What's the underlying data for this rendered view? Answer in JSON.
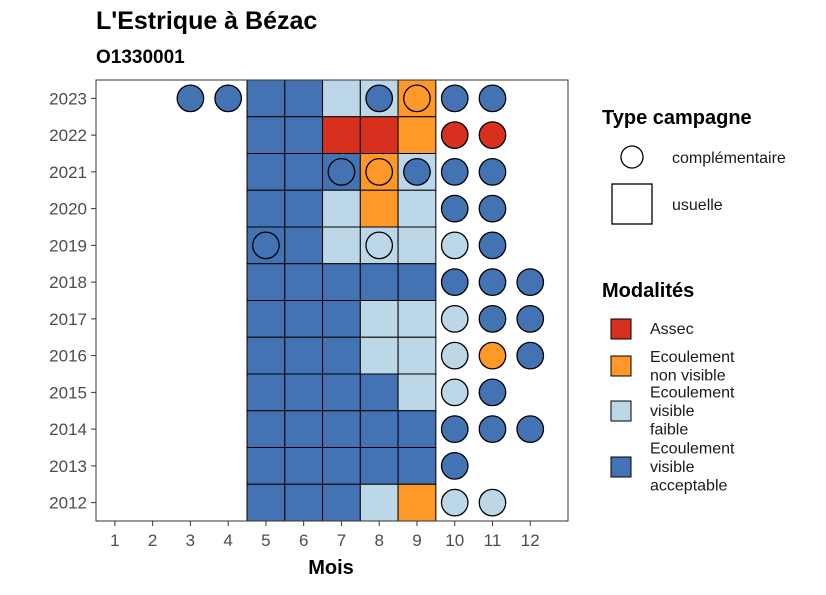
{
  "chart_data": {
    "type": "heatmap",
    "title": "L'Estrique à Bézac",
    "subtitle": "O1330001",
    "xlabel": "Mois",
    "ylabel": "",
    "x_ticks": [
      "1",
      "2",
      "3",
      "4",
      "5",
      "6",
      "7",
      "8",
      "9",
      "10",
      "11",
      "12"
    ],
    "y_ticks": [
      "2012",
      "2013",
      "2014",
      "2015",
      "2016",
      "2017",
      "2018",
      "2019",
      "2020",
      "2021",
      "2022",
      "2023"
    ],
    "grid": false,
    "colors": {
      "assec": "#d7301f",
      "nonvisible": "#fe9929",
      "faible": "#bcd7e8",
      "acceptable": "#4473b4"
    },
    "legend_shape": {
      "title": "Type campagne",
      "entries": [
        {
          "shape": "circle",
          "label": "complémentaire"
        },
        {
          "shape": "square",
          "label": "usuelle"
        }
      ]
    },
    "legend_fill": {
      "title": "Modalités",
      "entries": [
        {
          "key": "assec",
          "lines": [
            "Assec"
          ]
        },
        {
          "key": "nonvisible",
          "lines": [
            "Ecoulement",
            "non visible"
          ]
        },
        {
          "key": "faible",
          "lines": [
            "Ecoulement",
            "visible",
            "faible"
          ]
        },
        {
          "key": "acceptable",
          "lines": [
            "Ecoulement",
            "visible",
            "acceptable"
          ]
        }
      ]
    },
    "observations": [
      {
        "year": "2023",
        "month": 3,
        "type": "circle",
        "value": "acceptable"
      },
      {
        "year": "2023",
        "month": 4,
        "type": "circle",
        "value": "acceptable"
      },
      {
        "year": "2023",
        "month": 5,
        "type": "square",
        "value": "acceptable"
      },
      {
        "year": "2023",
        "month": 6,
        "type": "square",
        "value": "acceptable"
      },
      {
        "year": "2023",
        "month": 7,
        "type": "square",
        "value": "faible"
      },
      {
        "year": "2023",
        "month": 8,
        "type": "square",
        "value": "faible"
      },
      {
        "year": "2023",
        "month": 8,
        "type": "circle",
        "value": "acceptable"
      },
      {
        "year": "2023",
        "month": 9,
        "type": "square",
        "value": "nonvisible"
      },
      {
        "year": "2023",
        "month": 9,
        "type": "circle",
        "value": "nonvisible"
      },
      {
        "year": "2023",
        "month": 10,
        "type": "circle",
        "value": "acceptable"
      },
      {
        "year": "2023",
        "month": 11,
        "type": "circle",
        "value": "acceptable"
      },
      {
        "year": "2022",
        "month": 5,
        "type": "square",
        "value": "acceptable"
      },
      {
        "year": "2022",
        "month": 6,
        "type": "square",
        "value": "acceptable"
      },
      {
        "year": "2022",
        "month": 7,
        "type": "square",
        "value": "assec"
      },
      {
        "year": "2022",
        "month": 8,
        "type": "square",
        "value": "assec"
      },
      {
        "year": "2022",
        "month": 9,
        "type": "square",
        "value": "nonvisible"
      },
      {
        "year": "2022",
        "month": 10,
        "type": "circle",
        "value": "assec"
      },
      {
        "year": "2022",
        "month": 11,
        "type": "circle",
        "value": "assec"
      },
      {
        "year": "2021",
        "month": 5,
        "type": "square",
        "value": "acceptable"
      },
      {
        "year": "2021",
        "month": 6,
        "type": "square",
        "value": "acceptable"
      },
      {
        "year": "2021",
        "month": 7,
        "type": "square",
        "value": "acceptable"
      },
      {
        "year": "2021",
        "month": 7,
        "type": "circle",
        "value": "acceptable"
      },
      {
        "year": "2021",
        "month": 8,
        "type": "square",
        "value": "nonvisible"
      },
      {
        "year": "2021",
        "month": 8,
        "type": "circle",
        "value": "nonvisible"
      },
      {
        "year": "2021",
        "month": 9,
        "type": "square",
        "value": "faible"
      },
      {
        "year": "2021",
        "month": 9,
        "type": "circle",
        "value": "acceptable"
      },
      {
        "year": "2021",
        "month": 10,
        "type": "circle",
        "value": "acceptable"
      },
      {
        "year": "2021",
        "month": 11,
        "type": "circle",
        "value": "acceptable"
      },
      {
        "year": "2020",
        "month": 5,
        "type": "square",
        "value": "acceptable"
      },
      {
        "year": "2020",
        "month": 6,
        "type": "square",
        "value": "acceptable"
      },
      {
        "year": "2020",
        "month": 7,
        "type": "square",
        "value": "faible"
      },
      {
        "year": "2020",
        "month": 8,
        "type": "square",
        "value": "nonvisible"
      },
      {
        "year": "2020",
        "month": 9,
        "type": "square",
        "value": "faible"
      },
      {
        "year": "2020",
        "month": 10,
        "type": "circle",
        "value": "acceptable"
      },
      {
        "year": "2020",
        "month": 11,
        "type": "circle",
        "value": "acceptable"
      },
      {
        "year": "2019",
        "month": 5,
        "type": "square",
        "value": "acceptable"
      },
      {
        "year": "2019",
        "month": 5,
        "type": "circle",
        "value": "acceptable"
      },
      {
        "year": "2019",
        "month": 6,
        "type": "square",
        "value": "acceptable"
      },
      {
        "year": "2019",
        "month": 7,
        "type": "square",
        "value": "faible"
      },
      {
        "year": "2019",
        "month": 8,
        "type": "square",
        "value": "faible"
      },
      {
        "year": "2019",
        "month": 8,
        "type": "circle",
        "value": "faible"
      },
      {
        "year": "2019",
        "month": 9,
        "type": "square",
        "value": "faible"
      },
      {
        "year": "2019",
        "month": 10,
        "type": "circle",
        "value": "faible"
      },
      {
        "year": "2019",
        "month": 11,
        "type": "circle",
        "value": "acceptable"
      },
      {
        "year": "2018",
        "month": 5,
        "type": "square",
        "value": "acceptable"
      },
      {
        "year": "2018",
        "month": 6,
        "type": "square",
        "value": "acceptable"
      },
      {
        "year": "2018",
        "month": 7,
        "type": "square",
        "value": "acceptable"
      },
      {
        "year": "2018",
        "month": 8,
        "type": "square",
        "value": "acceptable"
      },
      {
        "year": "2018",
        "month": 9,
        "type": "square",
        "value": "acceptable"
      },
      {
        "year": "2018",
        "month": 10,
        "type": "circle",
        "value": "acceptable"
      },
      {
        "year": "2018",
        "month": 11,
        "type": "circle",
        "value": "acceptable"
      },
      {
        "year": "2018",
        "month": 12,
        "type": "circle",
        "value": "acceptable"
      },
      {
        "year": "2017",
        "month": 5,
        "type": "square",
        "value": "acceptable"
      },
      {
        "year": "2017",
        "month": 6,
        "type": "square",
        "value": "acceptable"
      },
      {
        "year": "2017",
        "month": 7,
        "type": "square",
        "value": "acceptable"
      },
      {
        "year": "2017",
        "month": 8,
        "type": "square",
        "value": "faible"
      },
      {
        "year": "2017",
        "month": 9,
        "type": "square",
        "value": "faible"
      },
      {
        "year": "2017",
        "month": 10,
        "type": "circle",
        "value": "faible"
      },
      {
        "year": "2017",
        "month": 11,
        "type": "circle",
        "value": "acceptable"
      },
      {
        "year": "2017",
        "month": 12,
        "type": "circle",
        "value": "acceptable"
      },
      {
        "year": "2016",
        "month": 5,
        "type": "square",
        "value": "acceptable"
      },
      {
        "year": "2016",
        "month": 6,
        "type": "square",
        "value": "acceptable"
      },
      {
        "year": "2016",
        "month": 7,
        "type": "square",
        "value": "acceptable"
      },
      {
        "year": "2016",
        "month": 8,
        "type": "square",
        "value": "faible"
      },
      {
        "year": "2016",
        "month": 9,
        "type": "square",
        "value": "faible"
      },
      {
        "year": "2016",
        "month": 10,
        "type": "circle",
        "value": "faible"
      },
      {
        "year": "2016",
        "month": 11,
        "type": "circle",
        "value": "nonvisible"
      },
      {
        "year": "2016",
        "month": 12,
        "type": "circle",
        "value": "acceptable"
      },
      {
        "year": "2015",
        "month": 5,
        "type": "square",
        "value": "acceptable"
      },
      {
        "year": "2015",
        "month": 6,
        "type": "square",
        "value": "acceptable"
      },
      {
        "year": "2015",
        "month": 7,
        "type": "square",
        "value": "acceptable"
      },
      {
        "year": "2015",
        "month": 8,
        "type": "square",
        "value": "acceptable"
      },
      {
        "year": "2015",
        "month": 9,
        "type": "square",
        "value": "faible"
      },
      {
        "year": "2015",
        "month": 10,
        "type": "circle",
        "value": "faible"
      },
      {
        "year": "2015",
        "month": 11,
        "type": "circle",
        "value": "acceptable"
      },
      {
        "year": "2014",
        "month": 5,
        "type": "square",
        "value": "acceptable"
      },
      {
        "year": "2014",
        "month": 6,
        "type": "square",
        "value": "acceptable"
      },
      {
        "year": "2014",
        "month": 7,
        "type": "square",
        "value": "acceptable"
      },
      {
        "year": "2014",
        "month": 8,
        "type": "square",
        "value": "acceptable"
      },
      {
        "year": "2014",
        "month": 9,
        "type": "square",
        "value": "acceptable"
      },
      {
        "year": "2014",
        "month": 10,
        "type": "circle",
        "value": "acceptable"
      },
      {
        "year": "2014",
        "month": 11,
        "type": "circle",
        "value": "acceptable"
      },
      {
        "year": "2014",
        "month": 12,
        "type": "circle",
        "value": "acceptable"
      },
      {
        "year": "2013",
        "month": 5,
        "type": "square",
        "value": "acceptable"
      },
      {
        "year": "2013",
        "month": 6,
        "type": "square",
        "value": "acceptable"
      },
      {
        "year": "2013",
        "month": 7,
        "type": "square",
        "value": "acceptable"
      },
      {
        "year": "2013",
        "month": 8,
        "type": "square",
        "value": "acceptable"
      },
      {
        "year": "2013",
        "month": 9,
        "type": "square",
        "value": "acceptable"
      },
      {
        "year": "2013",
        "month": 10,
        "type": "circle",
        "value": "acceptable"
      },
      {
        "year": "2012",
        "month": 5,
        "type": "square",
        "value": "acceptable"
      },
      {
        "year": "2012",
        "month": 6,
        "type": "square",
        "value": "acceptable"
      },
      {
        "year": "2012",
        "month": 7,
        "type": "square",
        "value": "acceptable"
      },
      {
        "year": "2012",
        "month": 8,
        "type": "square",
        "value": "faible"
      },
      {
        "year": "2012",
        "month": 9,
        "type": "square",
        "value": "nonvisible"
      },
      {
        "year": "2012",
        "month": 10,
        "type": "circle",
        "value": "faible"
      },
      {
        "year": "2012",
        "month": 11,
        "type": "circle",
        "value": "faible"
      }
    ]
  }
}
